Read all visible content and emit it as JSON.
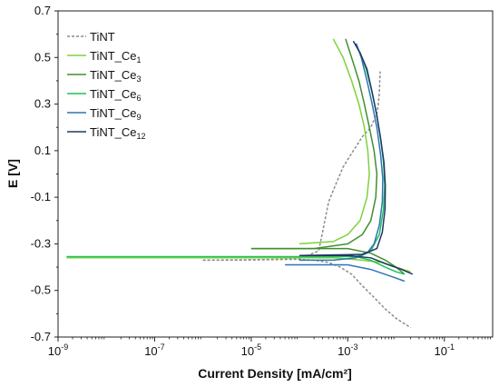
{
  "chart_data": {
    "type": "line",
    "xlabel": "Current Density [mA/cm²]",
    "ylabel": "E [V]",
    "x_scale": "log",
    "xlim": [
      1e-09,
      1
    ],
    "ylim": [
      -0.7,
      0.7
    ],
    "y_ticks": [
      -0.7,
      -0.5,
      -0.3,
      -0.1,
      0.1,
      0.3,
      0.5,
      0.7
    ],
    "y_tick_labels": [
      "-0.7",
      "-0.5",
      "-0.3",
      "-0.1",
      "0.1",
      "0.3",
      "0.5",
      "0.7"
    ],
    "x_ticks": [
      1e-09,
      1e-07,
      1e-05,
      0.001,
      0.1
    ],
    "x_tick_labels": [
      {
        "base": "10",
        "exp": "-9"
      },
      {
        "base": "10",
        "exp": "-7"
      },
      {
        "base": "10",
        "exp": "-5"
      },
      {
        "base": "10",
        "exp": "-3"
      },
      {
        "base": "10",
        "exp": "-1"
      }
    ],
    "grid": false,
    "legend_position": "top-left",
    "series": [
      {
        "name": "TiNT",
        "legend_main": "TiNT",
        "legend_sub": "",
        "color": "#8c8c8c",
        "dashed": true,
        "points": [
          [
            1e-06,
            -0.37
          ],
          [
            5e-06,
            -0.37
          ],
          [
            2e-05,
            -0.368
          ],
          [
            8e-05,
            -0.366
          ],
          [
            0.0002,
            -0.37
          ],
          [
            0.0004,
            -0.38
          ],
          [
            0.0007,
            -0.4
          ],
          [
            0.0012,
            -0.43
          ],
          [
            0.002,
            -0.48
          ],
          [
            0.0035,
            -0.53
          ],
          [
            0.006,
            -0.58
          ],
          [
            0.01,
            -0.62
          ],
          [
            0.02,
            -0.66
          ]
        ],
        "points_upper": [
          [
            1e-06,
            -0.37
          ],
          [
            1e-05,
            -0.368
          ],
          [
            0.0001,
            -0.365
          ],
          [
            0.00025,
            -0.33
          ],
          [
            0.0003,
            -0.25
          ],
          [
            0.0004,
            -0.12
          ],
          [
            0.00055,
            -0.05
          ],
          [
            0.0008,
            0.03
          ],
          [
            0.0013,
            0.1
          ],
          [
            0.002,
            0.16
          ],
          [
            0.003,
            0.2
          ],
          [
            0.004,
            0.26
          ],
          [
            0.0043,
            0.3
          ],
          [
            0.0045,
            0.35
          ],
          [
            0.0046,
            0.4
          ],
          [
            0.0047,
            0.44
          ]
        ]
      },
      {
        "name": "TiNT_Ce1",
        "legend_main": "TiNT_Ce",
        "legend_sub": "1",
        "color": "#7fd13b",
        "dashed": false,
        "points": [
          [
            1.5e-09,
            -0.36
          ],
          [
            1e-07,
            -0.36
          ],
          [
            1e-05,
            -0.36
          ],
          [
            0.0001,
            -0.36
          ],
          [
            0.0005,
            -0.36
          ],
          [
            0.002,
            -0.37
          ],
          [
            0.005,
            -0.38
          ],
          [
            0.01,
            -0.4
          ],
          [
            0.02,
            -0.42
          ]
        ],
        "points_upper": [
          [
            0.0001,
            -0.3
          ],
          [
            0.0005,
            -0.29
          ],
          [
            0.001,
            -0.26
          ],
          [
            0.0018,
            -0.2
          ],
          [
            0.0025,
            -0.1
          ],
          [
            0.0028,
            0
          ],
          [
            0.0026,
            0.1
          ],
          [
            0.0022,
            0.2
          ],
          [
            0.0017,
            0.3
          ],
          [
            0.0012,
            0.4
          ],
          [
            0.0008,
            0.5
          ],
          [
            0.0005,
            0.58
          ]
        ]
      },
      {
        "name": "TiNT_Ce3",
        "legend_main": "TiNT_Ce",
        "legend_sub": "3",
        "color": "#3f8f2f",
        "dashed": false,
        "points": [
          [
            1e-05,
            -0.32
          ],
          [
            0.0001,
            -0.32
          ],
          [
            0.001,
            -0.32
          ],
          [
            0.003,
            -0.34
          ],
          [
            0.006,
            -0.37
          ],
          [
            0.01,
            -0.4
          ],
          [
            0.015,
            -0.43
          ]
        ],
        "points_upper": [
          [
            1e-05,
            -0.32
          ],
          [
            0.0002,
            -0.32
          ],
          [
            0.001,
            -0.3
          ],
          [
            0.002,
            -0.26
          ],
          [
            0.003,
            -0.2
          ],
          [
            0.0038,
            -0.1
          ],
          [
            0.004,
            0
          ],
          [
            0.0035,
            0.1
          ],
          [
            0.0028,
            0.2
          ],
          [
            0.0022,
            0.3
          ],
          [
            0.0017,
            0.4
          ],
          [
            0.0012,
            0.5
          ],
          [
            0.0009,
            0.58
          ]
        ]
      },
      {
        "name": "TiNT_Ce6",
        "legend_main": "TiNT_Ce",
        "legend_sub": "6",
        "color": "#1fc25a",
        "dashed": false,
        "points": [
          [
            1.5e-09,
            -0.355
          ],
          [
            1e-07,
            -0.355
          ],
          [
            1e-05,
            -0.355
          ],
          [
            0.0003,
            -0.355
          ],
          [
            0.0015,
            -0.355
          ],
          [
            0.003,
            -0.37
          ],
          [
            0.006,
            -0.4
          ],
          [
            0.01,
            -0.42
          ],
          [
            0.015,
            -0.43
          ]
        ],
        "points_upper": [
          [
            0.0015,
            -0.355
          ],
          [
            0.003,
            -0.33
          ],
          [
            0.0045,
            -0.26
          ],
          [
            0.0055,
            -0.15
          ],
          [
            0.0058,
            -0.05
          ],
          [
            0.0055,
            0.05
          ],
          [
            0.0048,
            0.15
          ],
          [
            0.004,
            0.25
          ],
          [
            0.0032,
            0.35
          ],
          [
            0.0024,
            0.45
          ],
          [
            0.0018,
            0.52
          ],
          [
            0.0014,
            0.56
          ]
        ]
      },
      {
        "name": "TiNT_Ce9",
        "legend_main": "TiNT_Ce",
        "legend_sub": "9",
        "color": "#2e75b6",
        "dashed": false,
        "points": [
          [
            5e-05,
            -0.39
          ],
          [
            0.0003,
            -0.39
          ],
          [
            0.001,
            -0.39
          ],
          [
            0.003,
            -0.41
          ],
          [
            0.008,
            -0.44
          ],
          [
            0.015,
            -0.46
          ]
        ],
        "points_upper": [
          [
            0.0001,
            -0.37
          ],
          [
            0.0005,
            -0.37
          ],
          [
            0.0015,
            -0.36
          ],
          [
            0.0025,
            -0.34
          ],
          [
            0.0035,
            -0.3
          ],
          [
            0.0045,
            -0.22
          ],
          [
            0.0052,
            -0.12
          ],
          [
            0.0053,
            -0.02
          ],
          [
            0.0048,
            0.08
          ],
          [
            0.004,
            0.2
          ],
          [
            0.0032,
            0.3
          ],
          [
            0.0025,
            0.4
          ],
          [
            0.0019,
            0.5
          ],
          [
            0.0015,
            0.56
          ]
        ]
      },
      {
        "name": "TiNT_Ce12",
        "legend_main": "TiNT_Ce",
        "legend_sub": "12",
        "color": "#1f3864",
        "dashed": false,
        "points": [
          [
            0.0001,
            -0.35
          ],
          [
            0.001,
            -0.35
          ],
          [
            0.003,
            -0.36
          ],
          [
            0.007,
            -0.39
          ],
          [
            0.013,
            -0.41
          ],
          [
            0.022,
            -0.43
          ]
        ],
        "points_upper": [
          [
            0.0001,
            -0.35
          ],
          [
            0.002,
            -0.345
          ],
          [
            0.004,
            -0.32
          ],
          [
            0.0052,
            -0.25
          ],
          [
            0.0059,
            -0.15
          ],
          [
            0.006,
            -0.05
          ],
          [
            0.0056,
            0.05
          ],
          [
            0.0048,
            0.15
          ],
          [
            0.004,
            0.25
          ],
          [
            0.0032,
            0.35
          ],
          [
            0.0025,
            0.45
          ],
          [
            0.0018,
            0.52
          ],
          [
            0.0013,
            0.57
          ]
        ]
      }
    ]
  }
}
